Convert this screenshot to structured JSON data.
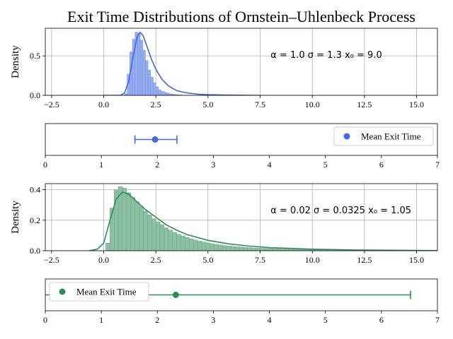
{
  "title": "Exit Time Distributions of Ornstein–Uhlenbeck Process",
  "chart_data": [
    {
      "type": "histogram",
      "color": "#4169e1",
      "ylabel": "Density",
      "xlim": [
        -2.8,
        16.0
      ],
      "ylim": [
        0.0,
        0.85
      ],
      "xticks": [
        -2.5,
        0.0,
        2.5,
        5.0,
        7.5,
        10.0,
        12.5,
        15.0
      ],
      "xtick_labels": [
        "−2.5",
        "0.0",
        "2.5",
        "5.0",
        "7.5",
        "10.0",
        "12.5",
        "15.0"
      ],
      "yticks": [
        0.0,
        0.5
      ],
      "ytick_labels": [
        "0.0",
        "0.5"
      ],
      "grid": true,
      "annotation": "α = 1.0   σ = 1.3   x₀ = 9.0",
      "hist_bins": {
        "start": 1.0,
        "width": 0.125,
        "heights": [
          0.02,
          0.27,
          0.55,
          0.71,
          0.8,
          0.79,
          0.7,
          0.57,
          0.44,
          0.32,
          0.23,
          0.16,
          0.11,
          0.07,
          0.05,
          0.04,
          0.03,
          0.02,
          0.015,
          0.01,
          0.008,
          0.005
        ]
      },
      "kde": {
        "x": [
          0.0,
          0.8,
          1.0,
          1.2,
          1.4,
          1.6,
          1.75,
          1.9,
          2.1,
          2.3,
          2.5,
          2.8,
          3.1,
          3.5,
          4.0,
          4.5,
          5.0,
          6.0,
          7.5
        ],
        "y": [
          0.0,
          0.0,
          0.03,
          0.18,
          0.48,
          0.74,
          0.8,
          0.75,
          0.6,
          0.45,
          0.33,
          0.2,
          0.12,
          0.06,
          0.03,
          0.015,
          0.008,
          0.003,
          0.0
        ]
      }
    },
    {
      "type": "errorbar",
      "color": "#4169e1",
      "xlim": [
        0,
        7
      ],
      "xticks": [
        0,
        1,
        2,
        3,
        4,
        5,
        6,
        7
      ],
      "mean": 1.96,
      "lower": 1.6,
      "upper": 2.35,
      "legend": "Mean Exit Time",
      "legend_position": "upper right"
    },
    {
      "type": "histogram",
      "color": "#2e8b57",
      "ylabel": "Density",
      "xlim": [
        -2.8,
        16.0
      ],
      "ylim": [
        0.0,
        0.44
      ],
      "xticks": [
        -2.5,
        0.0,
        2.5,
        5.0,
        7.5,
        10.0,
        12.5,
        15.0
      ],
      "xtick_labels": [
        "−2.5",
        "0.0",
        "2.5",
        "5.0",
        "7.5",
        "10.0",
        "12.5",
        "15.0"
      ],
      "yticks": [
        0.0,
        0.2,
        0.4
      ],
      "ytick_labels": [
        "0.0",
        "0.2",
        "0.4"
      ],
      "grid": true,
      "annotation": "α = 0.02   σ = 0.0325   x₀ = 1.05",
      "hist_bins": {
        "start": 0.1,
        "width": 0.2,
        "heights": [
          0.05,
          0.28,
          0.4,
          0.42,
          0.41,
          0.38,
          0.35,
          0.32,
          0.29,
          0.26,
          0.235,
          0.21,
          0.19,
          0.17,
          0.15,
          0.135,
          0.12,
          0.108,
          0.097,
          0.087,
          0.078,
          0.07,
          0.063,
          0.057,
          0.051,
          0.046,
          0.042,
          0.038,
          0.034,
          0.031,
          0.028,
          0.026,
          0.024,
          0.022,
          0.02,
          0.018,
          0.017,
          0.016,
          0.015,
          0.014,
          0.013,
          0.012,
          0.011,
          0.01,
          0.009,
          0.009,
          0.008,
          0.008,
          0.007,
          0.007,
          0.006,
          0.006,
          0.006,
          0.005,
          0.005,
          0.005,
          0.004,
          0.004,
          0.004,
          0.004,
          0.003,
          0.003,
          0.003,
          0.003,
          0.003,
          0.002,
          0.002,
          0.002,
          0.002,
          0.002,
          0.002,
          0.002,
          0.001,
          0.001,
          0.001,
          0.001,
          0.001,
          0.001,
          0.001
        ]
      },
      "kde": {
        "x": [
          -0.7,
          -0.3,
          0.0,
          0.3,
          0.6,
          0.9,
          1.2,
          1.6,
          2.0,
          2.5,
          3.0,
          3.5,
          4.0,
          5.0,
          6.0,
          7.0,
          8.0,
          10.0,
          12.5,
          16.0
        ],
        "y": [
          0.0,
          0.01,
          0.05,
          0.2,
          0.34,
          0.385,
          0.37,
          0.32,
          0.27,
          0.22,
          0.17,
          0.135,
          0.105,
          0.068,
          0.045,
          0.03,
          0.02,
          0.01,
          0.004,
          0.001
        ]
      }
    },
    {
      "type": "errorbar",
      "color": "#2e8b57",
      "xlim": [
        0,
        7
      ],
      "xticks": [
        0,
        1,
        2,
        3,
        4,
        5,
        6,
        7
      ],
      "mean": 2.33,
      "lower": 0.0,
      "upper": 6.52,
      "legend": "Mean Exit Time",
      "legend_position": "upper left"
    }
  ]
}
